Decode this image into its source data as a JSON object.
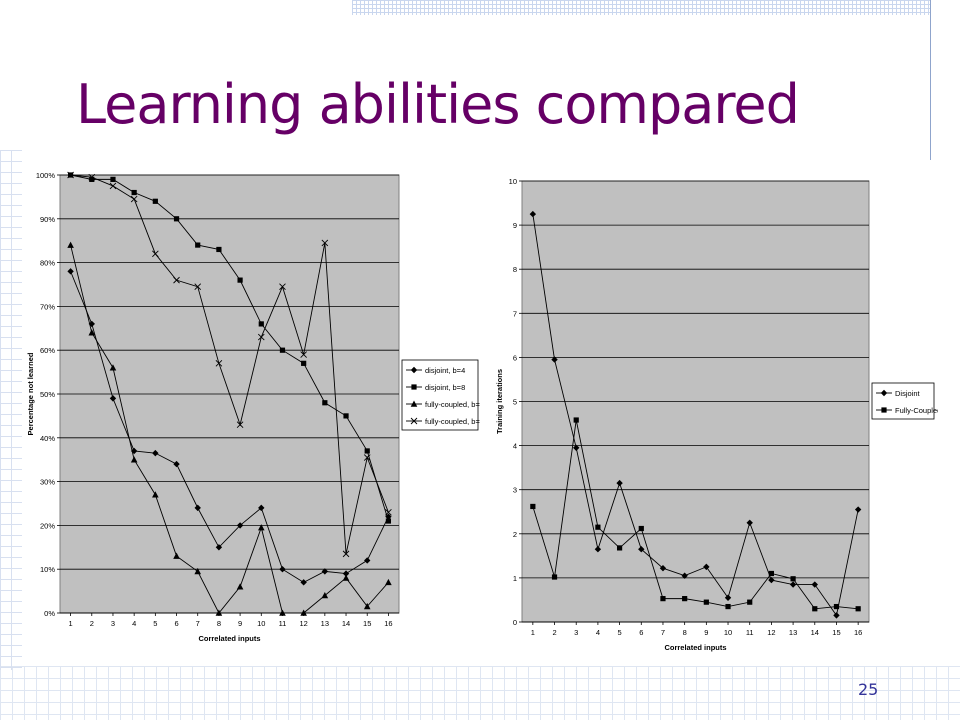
{
  "slide": {
    "title": "Learning abilities compared",
    "page_number": "25"
  },
  "chart_data": [
    {
      "type": "line",
      "title": "",
      "xlabel": "Correlated inputs",
      "ylabel": "Percentage not learned",
      "x": [
        1,
        2,
        3,
        4,
        5,
        6,
        7,
        8,
        9,
        10,
        11,
        12,
        13,
        14,
        15,
        16
      ],
      "ylim": [
        0,
        100
      ],
      "yticks": [
        "0%",
        "10%",
        "20%",
        "30%",
        "40%",
        "50%",
        "60%",
        "70%",
        "80%",
        "90%",
        "100%"
      ],
      "grid": true,
      "legend_position": "right",
      "plot_background": "#c0c0c0",
      "series": [
        {
          "name": "disjoint, b=4",
          "marker": "diamond",
          "values": [
            78,
            66,
            49,
            37,
            36.5,
            34,
            24,
            15,
            20,
            24,
            10,
            7,
            9.5,
            9,
            12,
            22
          ]
        },
        {
          "name": "disjoint, b=8",
          "marker": "square",
          "values": [
            100,
            99,
            99,
            96,
            94,
            90,
            84,
            83,
            76,
            66,
            60,
            57,
            48,
            45,
            37,
            21
          ]
        },
        {
          "name": "fully-coupled, b=4",
          "marker": "triangle",
          "values": [
            84,
            64,
            56,
            35,
            27,
            13,
            9.5,
            0,
            6,
            19.5,
            0,
            0,
            4,
            8,
            1.5,
            7
          ]
        },
        {
          "name": "fully-coupled, b=8",
          "marker": "x",
          "values": [
            100,
            99.5,
            97.5,
            94.5,
            82,
            76,
            74.5,
            57,
            43,
            63,
            74.5,
            59,
            84.5,
            13.5,
            35.5,
            23
          ]
        }
      ]
    },
    {
      "type": "line",
      "title": "",
      "xlabel": "Correlated inputs",
      "ylabel": "Training iterations",
      "x": [
        1,
        2,
        3,
        4,
        5,
        6,
        7,
        8,
        9,
        10,
        11,
        12,
        13,
        14,
        15,
        16
      ],
      "ylim": [
        0,
        10
      ],
      "yticks": [
        "0",
        "1",
        "2",
        "3",
        "4",
        "5",
        "6",
        "7",
        "8",
        "9",
        "10"
      ],
      "grid": true,
      "legend_position": "right",
      "plot_background": "#c0c0c0",
      "series": [
        {
          "name": "Disjoint",
          "marker": "diamond",
          "values": [
            9.25,
            5.95,
            3.95,
            1.65,
            3.15,
            1.65,
            1.22,
            1.05,
            1.25,
            0.55,
            2.25,
            0.95,
            0.85,
            0.85,
            0.15,
            2.55
          ]
        },
        {
          "name": "Fully-Coupled",
          "marker": "square",
          "values": [
            2.62,
            1.02,
            4.58,
            2.15,
            1.68,
            2.12,
            0.53,
            0.53,
            0.45,
            0.35,
            0.45,
            1.1,
            0.98,
            0.3,
            0.35,
            0.3
          ]
        }
      ]
    }
  ]
}
